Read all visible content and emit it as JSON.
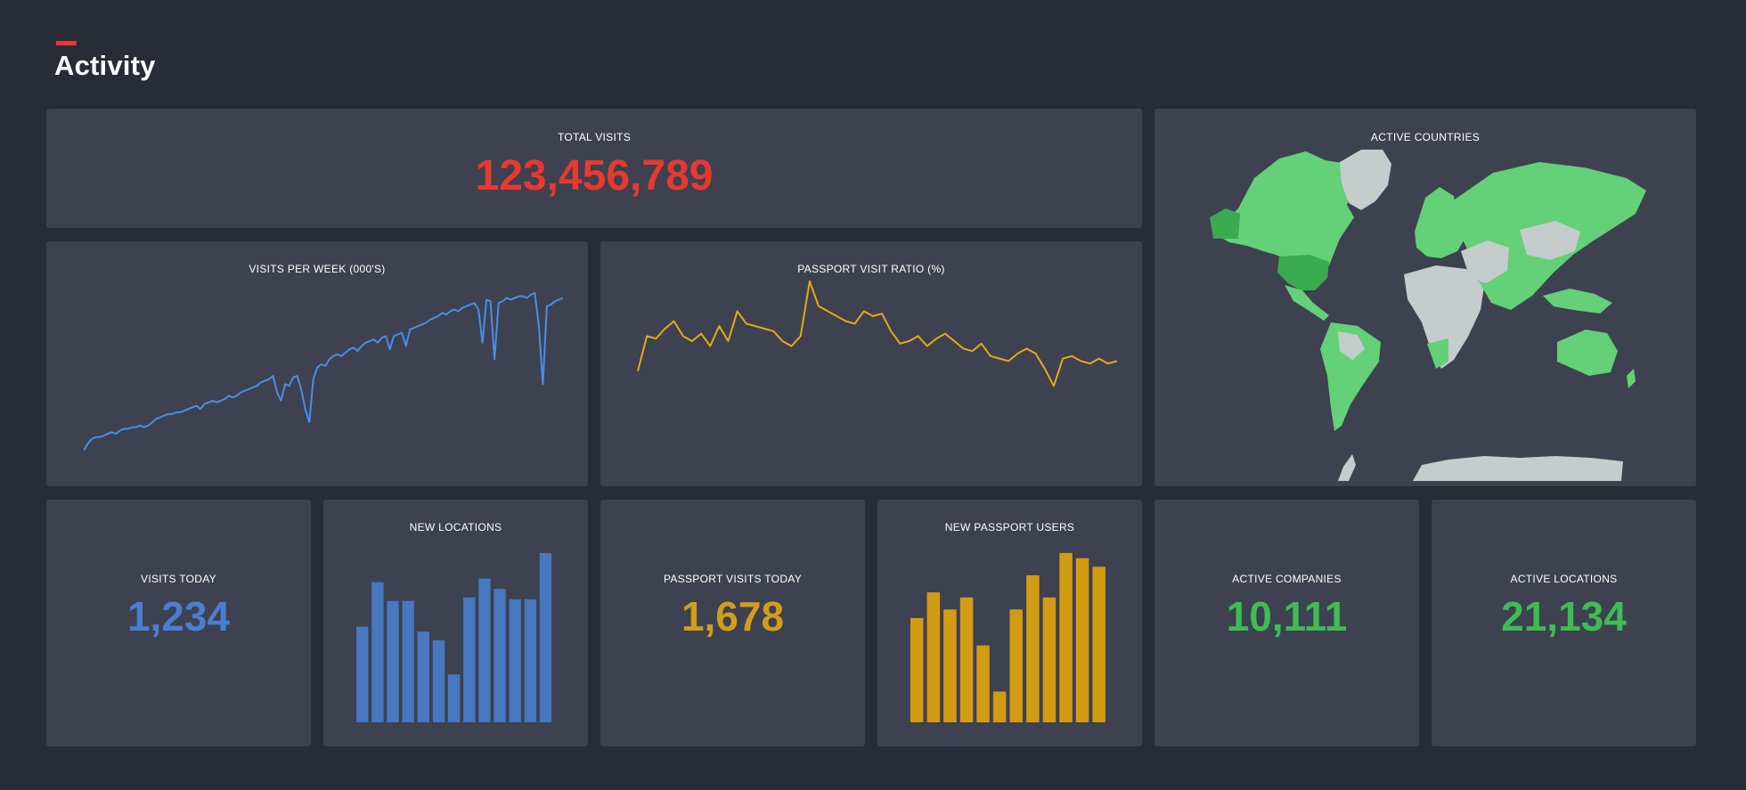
{
  "page": {
    "title": "Activity"
  },
  "colors": {
    "background": "#282c37",
    "card": "#3d4150",
    "accent": "#e8392f",
    "blue": "#4a8ee6",
    "blue_bars": "#4778c0",
    "yellow": "#e3ab16",
    "yellow_bars": "#d29b14",
    "green": "#3fbd53",
    "map_active": "#64d077",
    "map_active_dark": "#3aaa4e",
    "map_inactive": "#c5cccb"
  },
  "total_visits": {
    "label": "TOTAL VISITS",
    "value": "123,456,789"
  },
  "active_countries": {
    "label": "ACTIVE COUNTRIES"
  },
  "visits_per_week": {
    "label": "VISITS PER WEEK (000's)"
  },
  "passport_ratio": {
    "label": "PASSPORT VISIT RATIO (%)"
  },
  "visits_today": {
    "label": "VISITS TODAY",
    "value": "1,234"
  },
  "new_locations": {
    "label": "NEW LOCATIONS"
  },
  "passport_visits_today": {
    "label": "PASSPORT VISITS TODAY",
    "value": "1,678"
  },
  "new_passport_users": {
    "label": "NEW PASSPORT USERS"
  },
  "active_companies": {
    "label": "ACTIVE COMPANIES",
    "value": "10,111"
  },
  "active_locations": {
    "label": "ACTIVE LOCATIONS",
    "value": "21,134"
  },
  "chart_data": [
    {
      "id": "visits_per_week",
      "type": "line",
      "title": "VISITS PER WEEK (000's)",
      "ylim": [
        0,
        100
      ],
      "values": [
        5,
        9,
        12,
        13,
        13,
        14,
        15,
        16,
        15,
        17,
        18,
        18,
        19,
        19,
        20,
        19,
        20,
        22,
        24,
        25,
        26,
        27,
        27,
        28,
        28,
        29,
        30,
        31,
        32,
        30,
        33,
        34,
        35,
        34,
        35,
        36,
        38,
        37,
        38,
        40,
        41,
        42,
        43,
        44,
        46,
        47,
        48,
        50,
        40,
        35,
        45,
        44,
        49,
        50,
        42,
        30,
        22,
        48,
        55,
        57,
        56,
        60,
        62,
        63,
        62,
        64,
        66,
        67,
        65,
        68,
        70,
        71,
        72,
        70,
        73,
        74,
        66,
        74,
        75,
        76,
        68,
        78,
        79,
        80,
        81,
        82,
        84,
        85,
        86,
        88,
        87,
        89,
        90,
        89,
        91,
        92,
        93,
        94,
        90,
        70,
        96,
        95,
        60,
        94,
        95,
        97,
        96,
        97,
        98,
        98,
        97,
        99,
        100,
        80,
        45,
        92,
        93,
        95,
        96,
        97
      ]
    },
    {
      "id": "passport_ratio",
      "type": "line",
      "title": "PASSPORT VISIT RATIO (%)",
      "ylim": [
        0,
        100
      ],
      "values": [
        48,
        62,
        61,
        65,
        68,
        62,
        60,
        63,
        58,
        66,
        60,
        72,
        67,
        66,
        65,
        64,
        60,
        58,
        62,
        84,
        74,
        72,
        70,
        68,
        67,
        72,
        70,
        71,
        64,
        59,
        60,
        62,
        58,
        61,
        63,
        60,
        57,
        56,
        59,
        54,
        53,
        52,
        55,
        57,
        55,
        49,
        42,
        53,
        54,
        52,
        51,
        53,
        51,
        52
      ]
    },
    {
      "id": "new_locations",
      "type": "bar",
      "title": "NEW LOCATIONS",
      "ylim": [
        0,
        100
      ],
      "values": [
        56,
        82,
        71,
        71,
        53,
        48,
        28,
        73,
        84,
        78,
        72,
        72,
        99
      ]
    },
    {
      "id": "new_passport_users",
      "type": "bar",
      "title": "NEW PASSPORT USERS",
      "ylim": [
        0,
        100
      ],
      "values": [
        61,
        76,
        66,
        73,
        45,
        18,
        66,
        86,
        73,
        99,
        96,
        91
      ]
    }
  ]
}
